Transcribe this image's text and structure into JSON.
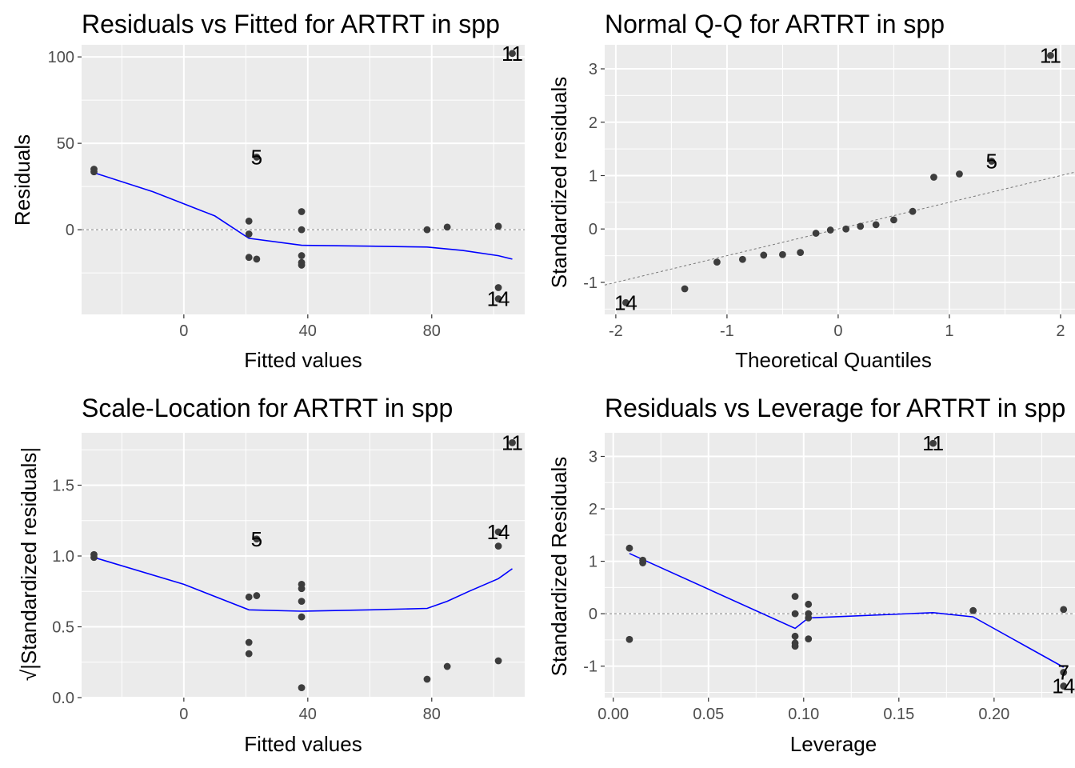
{
  "chart_data": [
    {
      "type": "scatter",
      "title": "Residuals vs Fitted for ARTRT in spp",
      "xlabel": "Fitted values",
      "ylabel": "Residuals",
      "xlim": [
        -33,
        110
      ],
      "ylim": [
        -49,
        107
      ],
      "xticks": [
        0,
        40,
        80
      ],
      "xtick_labels": [
        "0",
        "40",
        "80"
      ],
      "yticks": [
        0,
        50,
        100
      ],
      "ytick_labels": [
        "0",
        "50",
        "100"
      ],
      "grid": true,
      "ref_line": {
        "type": "hline",
        "y": 0
      },
      "points": [
        {
          "x": -29,
          "y": 33.5
        },
        {
          "x": -29,
          "y": 35
        },
        {
          "x": 21,
          "y": 5
        },
        {
          "x": 21,
          "y": -2.5
        },
        {
          "x": 21,
          "y": -16
        },
        {
          "x": 23.5,
          "y": 42
        },
        {
          "x": 23.5,
          "y": -17
        },
        {
          "x": 38,
          "y": 10.5
        },
        {
          "x": 38,
          "y": 0
        },
        {
          "x": 38,
          "y": -15
        },
        {
          "x": 38,
          "y": -19
        },
        {
          "x": 38,
          "y": -20.5
        },
        {
          "x": 78.5,
          "y": 0
        },
        {
          "x": 85,
          "y": 1.5
        },
        {
          "x": 101.5,
          "y": 2
        },
        {
          "x": 101.5,
          "y": -33.5
        },
        {
          "x": 101.5,
          "y": -40
        },
        {
          "x": 106,
          "y": 102
        }
      ],
      "smooth": [
        {
          "x": -29,
          "y": 33
        },
        {
          "x": -10,
          "y": 22
        },
        {
          "x": 10,
          "y": 8
        },
        {
          "x": 21,
          "y": -5
        },
        {
          "x": 38,
          "y": -9
        },
        {
          "x": 60,
          "y": -9.5
        },
        {
          "x": 78.5,
          "y": -10
        },
        {
          "x": 90,
          "y": -12
        },
        {
          "x": 101.5,
          "y": -15
        },
        {
          "x": 106,
          "y": -17
        }
      ],
      "labels": [
        {
          "x": 106,
          "y": 102,
          "text": "11"
        },
        {
          "x": 23.5,
          "y": 42,
          "text": "5"
        },
        {
          "x": 101.5,
          "y": -40,
          "text": "14"
        }
      ]
    },
    {
      "type": "scatter",
      "title": "Normal Q-Q for ARTRT in spp",
      "xlabel": "Theoretical Quantiles",
      "ylabel": "Standardized residuals",
      "xlim": [
        -2.1,
        2.13
      ],
      "ylim": [
        -1.6,
        3.45
      ],
      "xticks": [
        -2,
        -1,
        0,
        1,
        2
      ],
      "xtick_labels": [
        "-2",
        "-1",
        "0",
        "1",
        "2"
      ],
      "yticks": [
        -1,
        0,
        1,
        2,
        3
      ],
      "ytick_labels": [
        "-1",
        "0",
        "1",
        "2",
        "3"
      ],
      "grid": true,
      "ref_line": {
        "type": "abline",
        "intercept": 0,
        "slope": 0.5
      },
      "points": [
        {
          "x": -1.91,
          "y": -1.38
        },
        {
          "x": -1.38,
          "y": -1.12
        },
        {
          "x": -1.09,
          "y": -0.62
        },
        {
          "x": -0.86,
          "y": -0.57
        },
        {
          "x": -0.67,
          "y": -0.49
        },
        {
          "x": -0.5,
          "y": -0.48
        },
        {
          "x": -0.34,
          "y": -0.44
        },
        {
          "x": -0.2,
          "y": -0.08
        },
        {
          "x": -0.07,
          "y": -0.02
        },
        {
          "x": 0.07,
          "y": 0.0
        },
        {
          "x": 0.2,
          "y": 0.05
        },
        {
          "x": 0.34,
          "y": 0.08
        },
        {
          "x": 0.5,
          "y": 0.17
        },
        {
          "x": 0.67,
          "y": 0.33
        },
        {
          "x": 0.86,
          "y": 0.97
        },
        {
          "x": 1.09,
          "y": 1.03
        },
        {
          "x": 1.38,
          "y": 1.27
        },
        {
          "x": 1.91,
          "y": 3.25
        }
      ],
      "labels": [
        {
          "x": 1.91,
          "y": 3.25,
          "text": "11"
        },
        {
          "x": 1.38,
          "y": 1.27,
          "text": "5"
        },
        {
          "x": -1.91,
          "y": -1.38,
          "text": "14"
        }
      ]
    },
    {
      "type": "scatter",
      "title": "Scale-Location for ARTRT in spp",
      "xlabel": "Fitted values",
      "ylabel": "√|Standardized residuals|",
      "xlim": [
        -33,
        110
      ],
      "ylim": [
        0,
        1.87
      ],
      "xticks": [
        0,
        40,
        80
      ],
      "xtick_labels": [
        "0",
        "40",
        "80"
      ],
      "yticks": [
        0,
        0.5,
        1,
        1.5
      ],
      "ytick_labels": [
        "0.0",
        "0.5",
        "1.0",
        "1.5"
      ],
      "grid": true,
      "points": [
        {
          "x": -29,
          "y": 0.99
        },
        {
          "x": -29,
          "y": 1.01
        },
        {
          "x": 21,
          "y": 0.71
        },
        {
          "x": 21,
          "y": 0.39
        },
        {
          "x": 21,
          "y": 0.31
        },
        {
          "x": 23.5,
          "y": 1.12
        },
        {
          "x": 23.5,
          "y": 0.72
        },
        {
          "x": 38,
          "y": 0.8
        },
        {
          "x": 38,
          "y": 0.77
        },
        {
          "x": 38,
          "y": 0.68
        },
        {
          "x": 38,
          "y": 0.57
        },
        {
          "x": 38,
          "y": 0.07
        },
        {
          "x": 78.5,
          "y": 0.13
        },
        {
          "x": 85,
          "y": 0.22
        },
        {
          "x": 101.5,
          "y": 0.26
        },
        {
          "x": 101.5,
          "y": 1.07
        },
        {
          "x": 101.5,
          "y": 1.17
        },
        {
          "x": 106,
          "y": 1.8
        }
      ],
      "smooth": [
        {
          "x": -29,
          "y": 0.99
        },
        {
          "x": 0,
          "y": 0.8
        },
        {
          "x": 21,
          "y": 0.62
        },
        {
          "x": 38,
          "y": 0.61
        },
        {
          "x": 60,
          "y": 0.62
        },
        {
          "x": 78.5,
          "y": 0.63
        },
        {
          "x": 85,
          "y": 0.68
        },
        {
          "x": 92,
          "y": 0.75
        },
        {
          "x": 101.5,
          "y": 0.84
        },
        {
          "x": 106,
          "y": 0.91
        }
      ],
      "labels": [
        {
          "x": 106,
          "y": 1.8,
          "text": "11"
        },
        {
          "x": 101.5,
          "y": 1.17,
          "text": "14"
        },
        {
          "x": 23.5,
          "y": 1.12,
          "text": "5"
        }
      ]
    },
    {
      "type": "scatter",
      "title": "Residuals vs Leverage for ARTRT in spp",
      "xlabel": "Leverage",
      "ylabel": "Standardized Residuals",
      "xlim": [
        -0.0045,
        0.2425
      ],
      "ylim": [
        -1.6,
        3.45
      ],
      "xticks": [
        0,
        0.05,
        0.1,
        0.15,
        0.2
      ],
      "xtick_labels": [
        "0.00",
        "0.05",
        "0.10",
        "0.15",
        "0.20"
      ],
      "yticks": [
        -1,
        0,
        1,
        2,
        3
      ],
      "ytick_labels": [
        "-1",
        "0",
        "1",
        "2",
        "3"
      ],
      "grid": true,
      "ref_line": {
        "type": "hline",
        "y": 0
      },
      "points": [
        {
          "x": 0.0085,
          "y": 1.25
        },
        {
          "x": 0.0085,
          "y": -0.49
        },
        {
          "x": 0.0155,
          "y": 1.02
        },
        {
          "x": 0.0155,
          "y": 0.97
        },
        {
          "x": 0.0955,
          "y": 0.33
        },
        {
          "x": 0.0955,
          "y": 0.0
        },
        {
          "x": 0.0955,
          "y": -0.43
        },
        {
          "x": 0.0955,
          "y": -0.56
        },
        {
          "x": 0.0955,
          "y": -0.62
        },
        {
          "x": 0.1025,
          "y": 0.18
        },
        {
          "x": 0.1025,
          "y": 0.0
        },
        {
          "x": 0.1025,
          "y": -0.08
        },
        {
          "x": 0.1025,
          "y": -0.48
        },
        {
          "x": 0.168,
          "y": 3.25
        },
        {
          "x": 0.189,
          "y": 0.06
        },
        {
          "x": 0.2365,
          "y": 0.08
        },
        {
          "x": 0.2365,
          "y": -1.12
        },
        {
          "x": 0.2365,
          "y": -1.38
        }
      ],
      "smooth": [
        {
          "x": 0.0085,
          "y": 1.15
        },
        {
          "x": 0.0955,
          "y": -0.28
        },
        {
          "x": 0.1025,
          "y": -0.08
        },
        {
          "x": 0.168,
          "y": 0.02
        },
        {
          "x": 0.189,
          "y": -0.06
        },
        {
          "x": 0.2365,
          "y": -1.02
        }
      ],
      "labels": [
        {
          "x": 0.168,
          "y": 3.25,
          "text": "11"
        },
        {
          "x": 0.2365,
          "y": -1.12,
          "text": "7"
        },
        {
          "x": 0.2365,
          "y": -1.38,
          "text": "14"
        }
      ]
    }
  ]
}
